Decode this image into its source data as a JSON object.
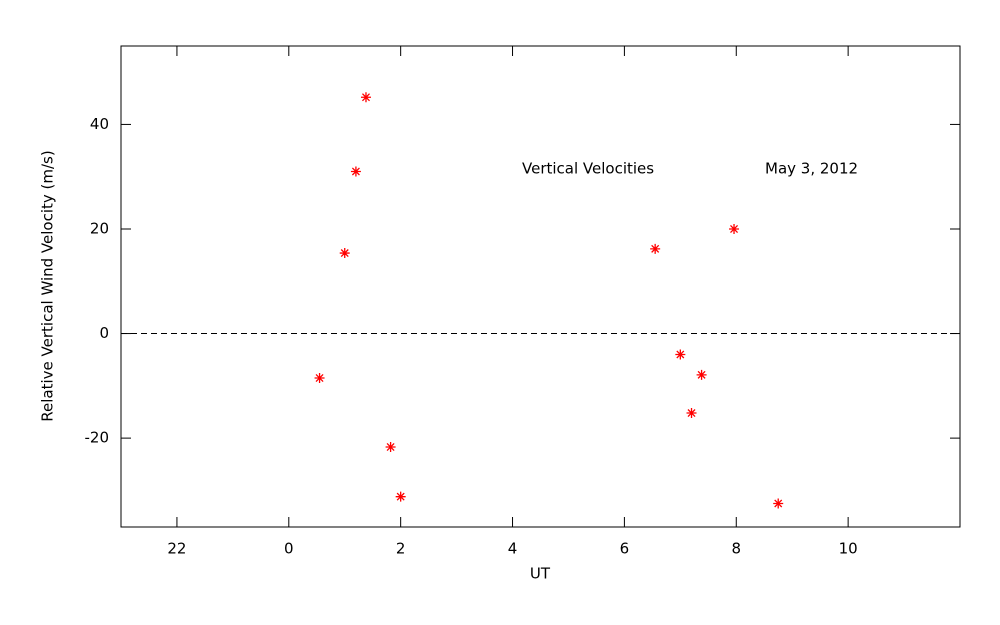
{
  "chart_data": {
    "type": "scatter",
    "xlabel": "UT",
    "ylabel": "Relative Vertical Wind Velocity (m/s)",
    "annotations": [
      "Vertical Velocities",
      "May 3, 2012"
    ],
    "series": [
      {
        "color": "#ff0000",
        "x": [
          0.55,
          1.0,
          1.2,
          1.38,
          1.82,
          2.0,
          6.55,
          7.0,
          7.2,
          7.38,
          7.96,
          8.75
        ],
        "values": [
          -8.5,
          15.4,
          31,
          45.2,
          -21.7,
          -31.2,
          16.2,
          -4,
          -15.2,
          -7.9,
          20,
          -32.5
        ]
      }
    ],
    "reference_line": 0,
    "xlim": [
      -3,
      12
    ],
    "xticks": [
      {
        "value": -2,
        "label": "22"
      },
      0,
      2,
      4,
      6,
      8,
      10
    ],
    "ylim": [
      -37,
      55
    ],
    "yticks": [
      -20,
      0,
      20,
      40
    ]
  }
}
